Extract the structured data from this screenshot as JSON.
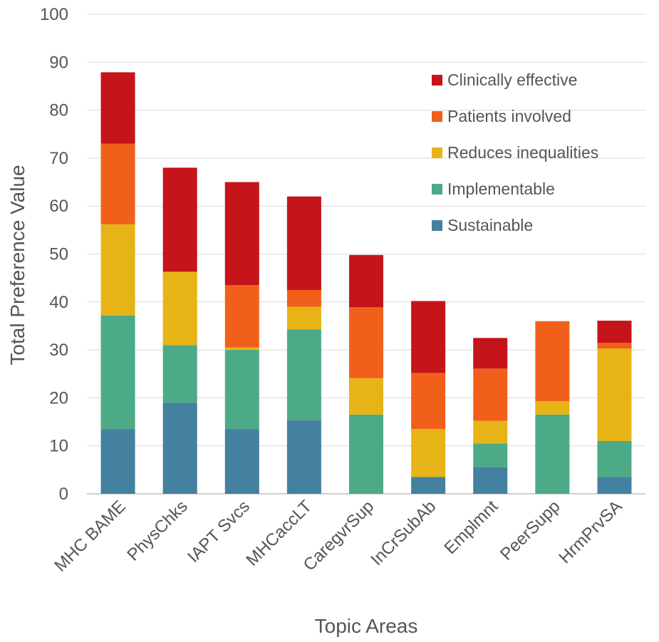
{
  "chart_data": {
    "type": "bar",
    "stacked": true,
    "title": "",
    "xlabel": "Topic Areas",
    "ylabel": "Total Preference Value",
    "ylim": [
      0,
      100
    ],
    "yticks": [
      0,
      10,
      20,
      30,
      40,
      50,
      60,
      70,
      80,
      90,
      100
    ],
    "grid": true,
    "legend_position": "top-right",
    "categories": [
      "MHC BAME",
      "PhysChks",
      "IAPT Svcs",
      "MHCaccLT",
      "CaregvrSup",
      "InCrSubAb",
      "Emplmnt",
      "PeerSupp",
      "HrmPrvSA"
    ],
    "series": [
      {
        "name": "Sustainable",
        "color": "#44809F",
        "values": [
          13.5,
          19,
          13.5,
          15.3,
          0,
          3.5,
          5.5,
          0,
          3.5
        ]
      },
      {
        "name": "Implementable",
        "color": "#4DAA86",
        "values": [
          23.7,
          12,
          16.5,
          19,
          16.5,
          0,
          5,
          16.5,
          7.5
        ]
      },
      {
        "name": "Reduces inequalities",
        "color": "#E6B416",
        "values": [
          19,
          15.3,
          0.5,
          4.7,
          7.6,
          10,
          4.7,
          2.8,
          19.3
        ]
      },
      {
        "name": "Patients involved",
        "color": "#F1601A",
        "values": [
          16.8,
          0,
          13,
          3.5,
          14.8,
          11.7,
          10.9,
          16.7,
          1.2
        ]
      },
      {
        "name": "Clinically effective",
        "color": "#C5141A",
        "values": [
          14.9,
          21.7,
          21.5,
          19.5,
          10.9,
          15,
          6.4,
          0,
          4.6
        ]
      }
    ],
    "legend_order": [
      "Clinically effective",
      "Patients involved",
      "Reduces inequalities",
      "Implementable",
      "Sustainable"
    ]
  }
}
